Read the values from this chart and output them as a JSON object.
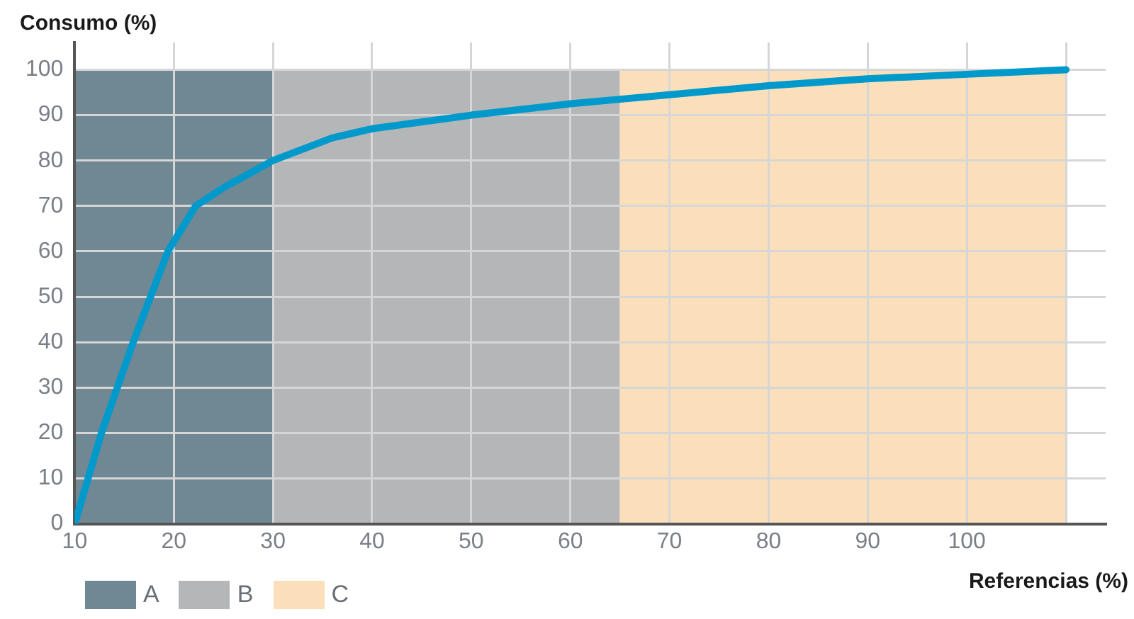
{
  "chart_data": {
    "type": "line",
    "xlabel": "Referencias (%)",
    "ylabel": "Consumo (%)",
    "x": [
      10,
      12.7,
      15.9,
      19.4,
      22.2,
      25,
      30,
      36,
      40,
      50,
      60,
      65,
      70,
      80,
      90,
      100,
      110
    ],
    "series": [
      {
        "color": "#0099cc",
        "values": [
          0,
          20,
          40,
          60,
          70,
          74,
          80,
          85,
          87,
          90,
          92.5,
          93.5,
          94.5,
          96.5,
          98,
          99,
          100
        ]
      }
    ],
    "xlim": [
      10,
      114
    ],
    "xticks": [
      10,
      20,
      30,
      40,
      50,
      60,
      70,
      80,
      90,
      100,
      {
        "value": 110,
        "label": null
      }
    ],
    "ylim": [
      0,
      106
    ],
    "yticks": [
      0,
      10,
      20,
      30,
      40,
      50,
      60,
      70,
      80,
      90,
      100
    ],
    "bands": [
      {
        "axis": "x",
        "from": 10,
        "to": 30,
        "label": "A",
        "color": "#6f8894"
      },
      {
        "axis": "x",
        "from": 30,
        "to": 65,
        "label": "B",
        "color": "#b5b6b8"
      },
      {
        "axis": "x",
        "from": 65,
        "to": 110,
        "label": "C",
        "color": "#fbdfbb"
      }
    ],
    "grid": true,
    "marker": "none",
    "line_style": "solid",
    "legend": "bottom left"
  }
}
